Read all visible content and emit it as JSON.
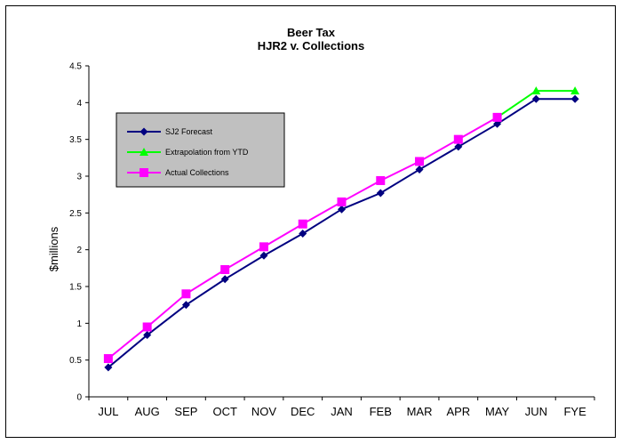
{
  "chart_data": {
    "type": "line",
    "title": [
      "Beer Tax",
      "HJR2 v. Collections"
    ],
    "xlabel": "",
    "ylabel": "$millions",
    "ylim": [
      0,
      4.5
    ],
    "yticks": [
      "0",
      "0.5",
      "1",
      "1.5",
      "2",
      "2.5",
      "3",
      "3.5",
      "4",
      "4.5"
    ],
    "categories": [
      "JUL",
      "AUG",
      "SEP",
      "OCT",
      "NOV",
      "DEC",
      "JAN",
      "FEB",
      "MAR",
      "APR",
      "MAY",
      "JUN",
      "FYE"
    ],
    "grid": false,
    "legend_position": "upper-left",
    "series": [
      {
        "name": "SJ2 Forecast",
        "color": "#000080",
        "marker": "diamond",
        "values": [
          0.4,
          0.84,
          1.25,
          1.6,
          1.92,
          2.22,
          2.55,
          2.77,
          3.09,
          3.4,
          3.71,
          4.05,
          4.05
        ]
      },
      {
        "name": "Extrapolation from YTD",
        "color": "#00ff00",
        "marker": "triangle",
        "values": [
          null,
          null,
          null,
          null,
          null,
          null,
          null,
          null,
          null,
          null,
          3.8,
          4.16,
          4.16
        ]
      },
      {
        "name": "Actual Collections",
        "color": "#ff00ff",
        "marker": "square",
        "values": [
          0.52,
          0.95,
          1.4,
          1.73,
          2.04,
          2.35,
          2.65,
          2.94,
          3.2,
          3.5,
          3.8,
          null,
          null
        ]
      }
    ],
    "legend_background": "#c0c0c0",
    "axis_color": "#000000"
  }
}
